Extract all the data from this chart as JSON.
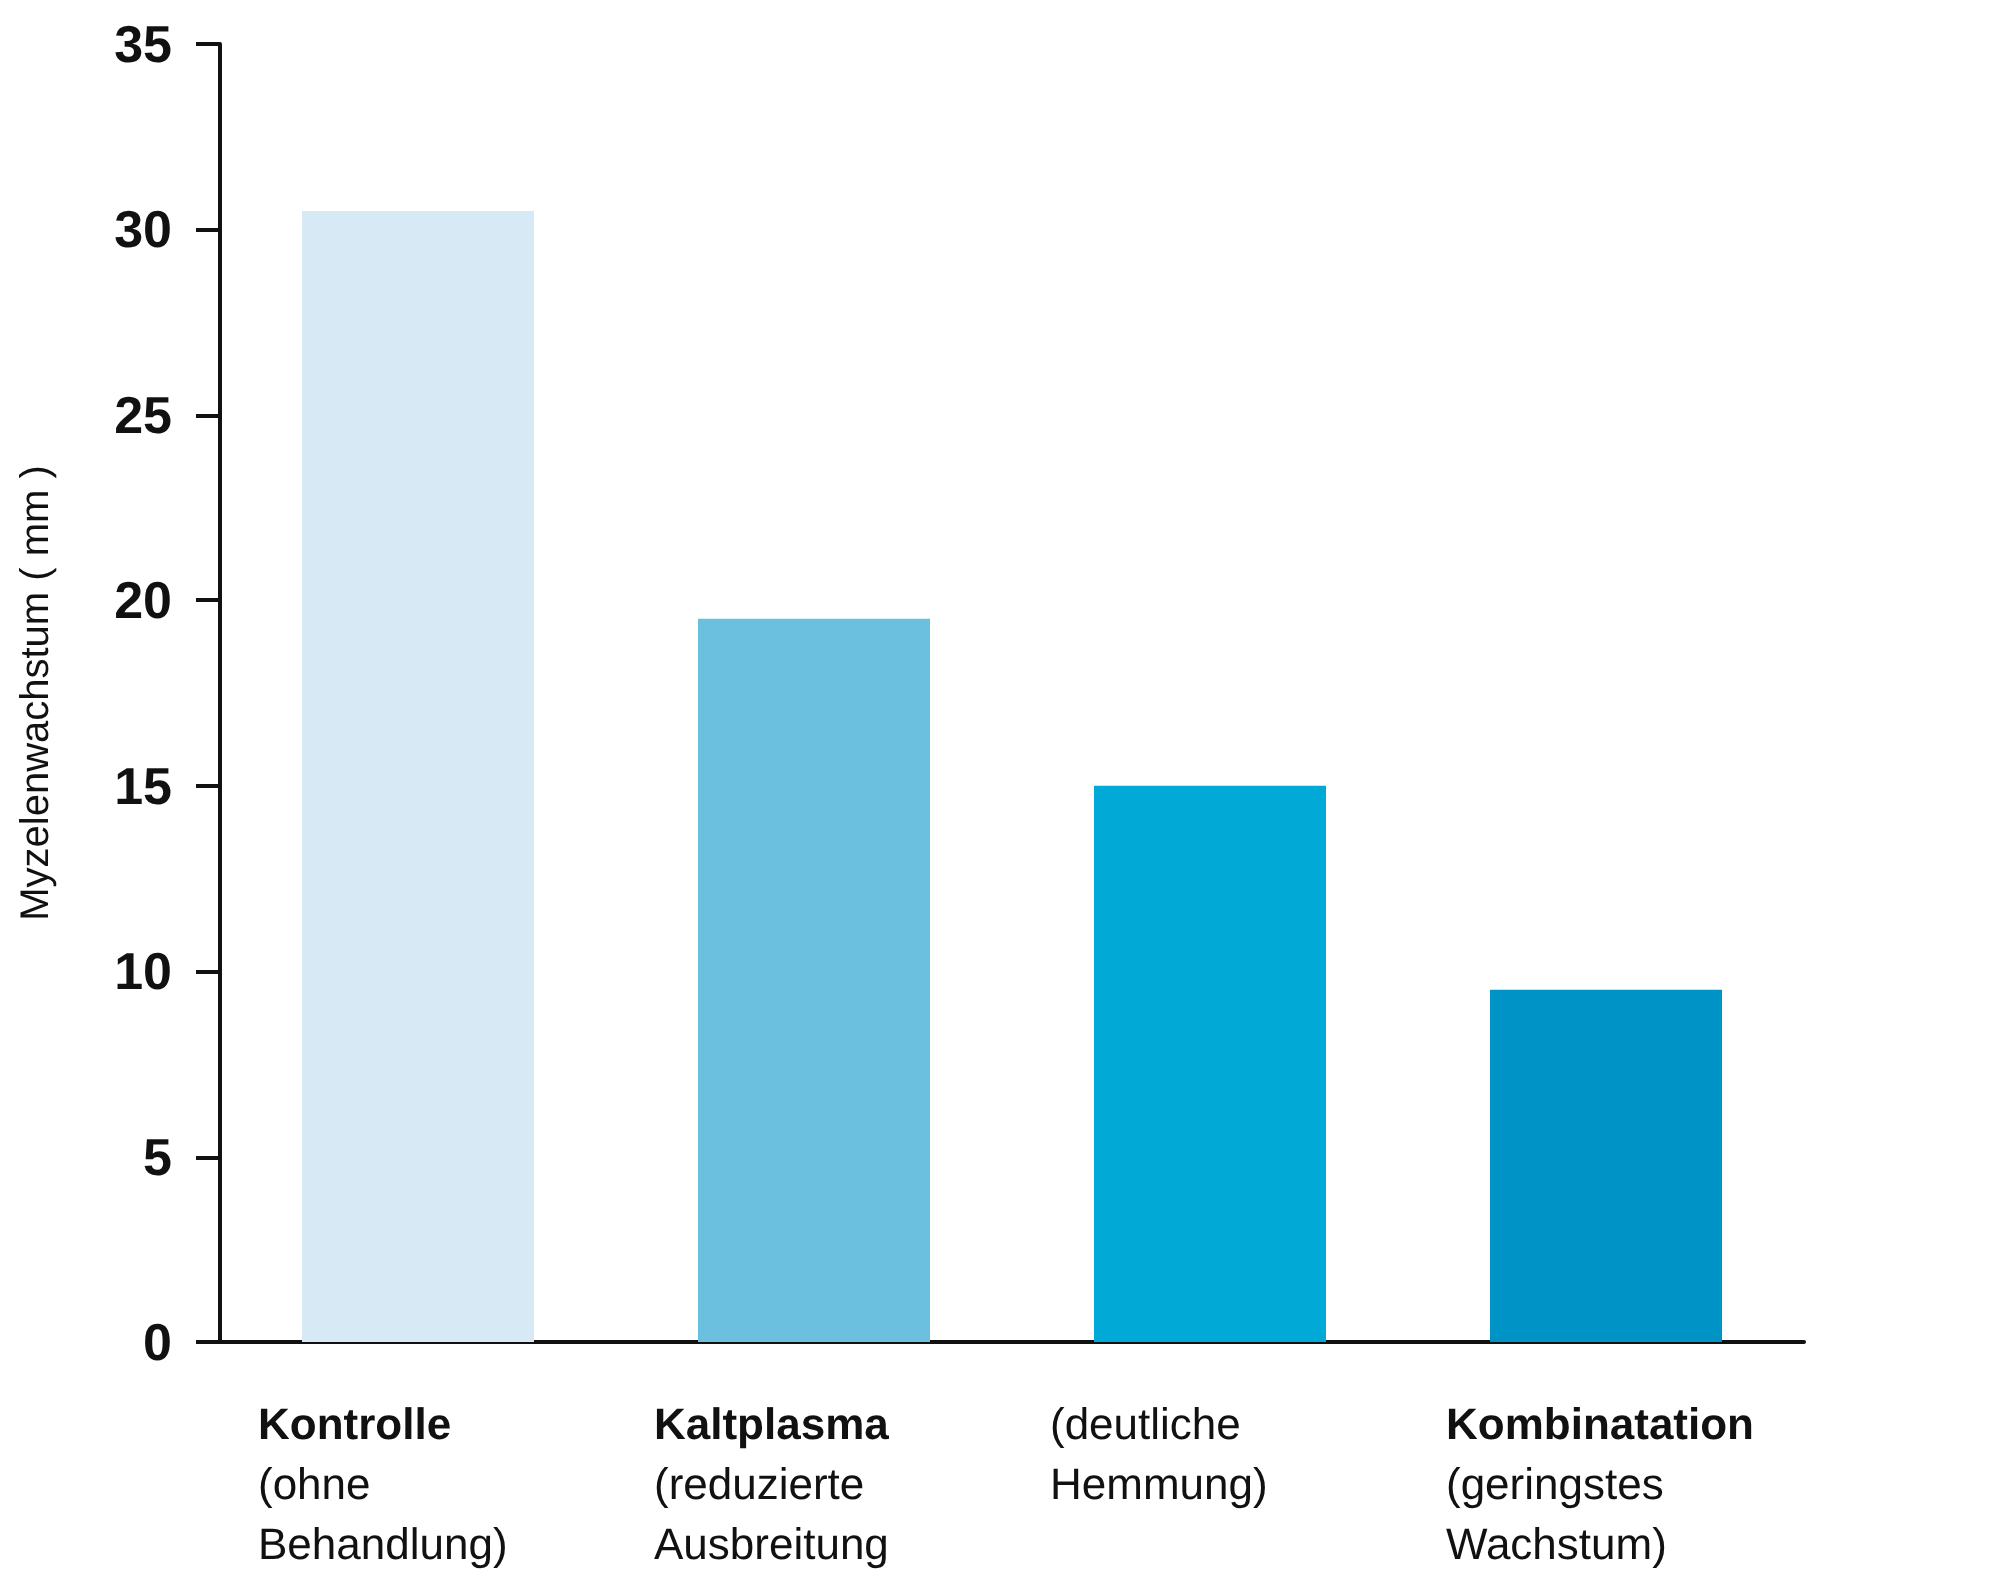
{
  "chart_data": {
    "type": "bar",
    "ylabel": "Myzelenwachstum ( mm )",
    "categories": [
      "Kontrolle\n(ohne\nBehandlung)",
      "Kaltplasma\n(reduzierte\nAusbreitung",
      "(deutliche\nHemmung)",
      "Kombinatation\n(geringstes\nWachstum)"
    ],
    "values": [
      30.5,
      19.5,
      15.0,
      9.5
    ],
    "colors": [
      "#d6e9f5",
      "#6bbfdf",
      "#00a9d6",
      "#0093c6"
    ],
    "ylim": [
      0,
      35
    ],
    "yticks": [
      0,
      5,
      10,
      15,
      20,
      25,
      30,
      35
    ],
    "grid": false
  }
}
